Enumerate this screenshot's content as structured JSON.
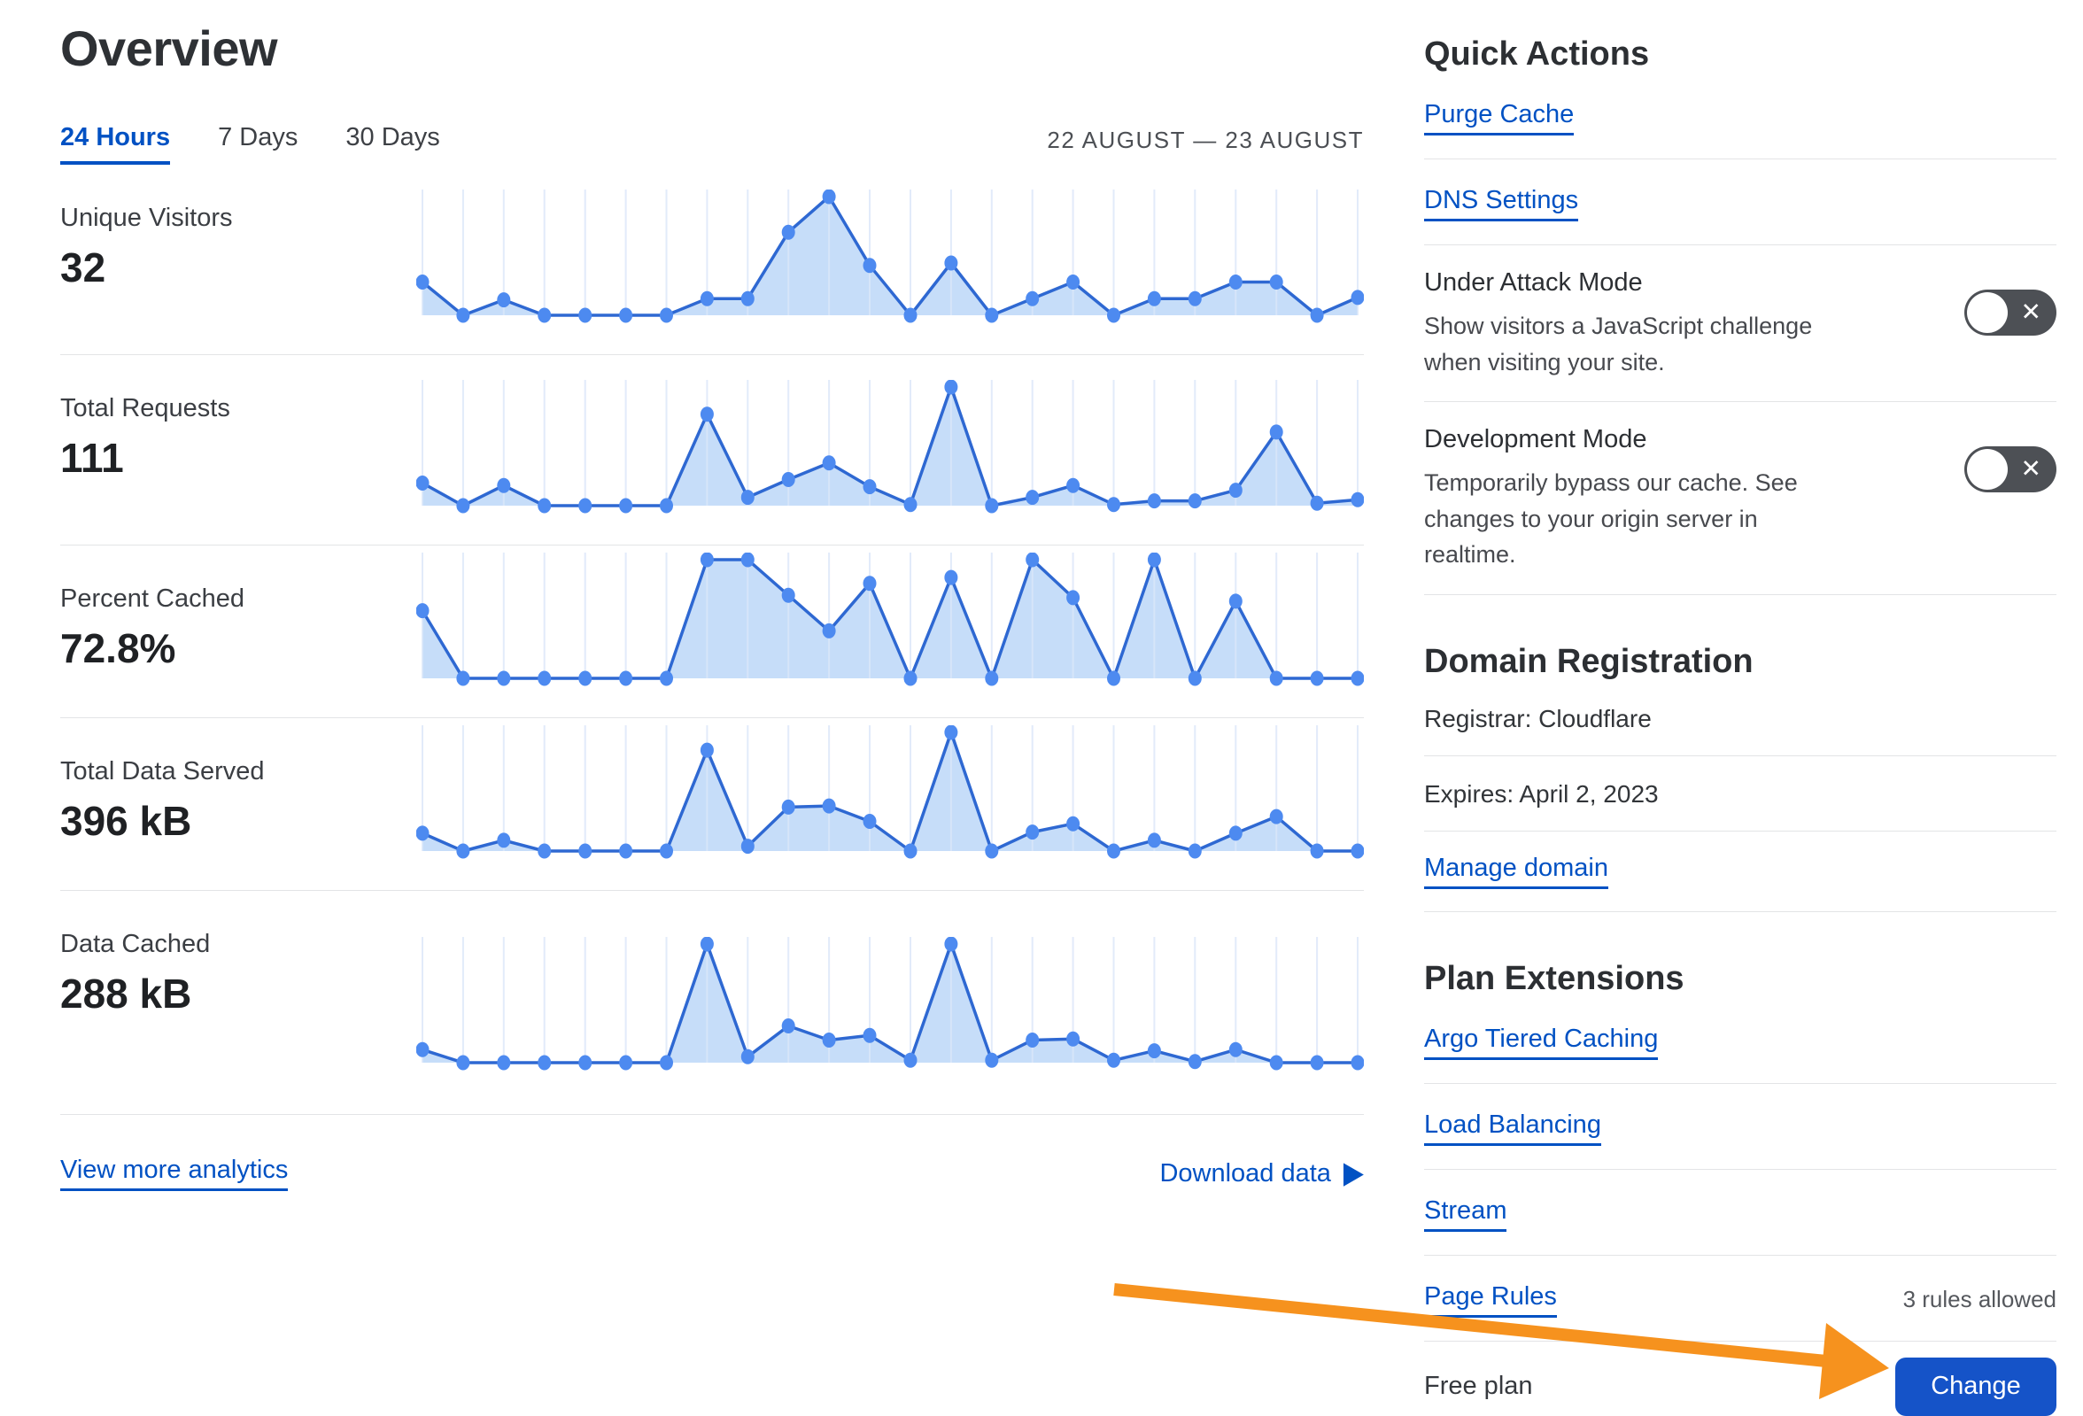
{
  "page": {
    "title": "Overview",
    "tabs": [
      {
        "label": "24 Hours",
        "active": true
      },
      {
        "label": "7 Days",
        "active": false
      },
      {
        "label": "30 Days",
        "active": false
      }
    ],
    "date_range": "22 AUGUST — 23 AUGUST"
  },
  "charts": {
    "rows": [
      {
        "label": "Unique Visitors",
        "value": "32"
      },
      {
        "label": "Total Requests",
        "value": "111"
      },
      {
        "label": "Percent Cached",
        "value": "72.8%"
      },
      {
        "label": "Total Data Served",
        "value": "396 kB"
      },
      {
        "label": "Data Cached",
        "value": "288 kB"
      }
    ],
    "footer": {
      "view_more": "View more analytics",
      "download": "Download data"
    }
  },
  "chart_data": [
    {
      "type": "area",
      "title": "Unique Visitors",
      "total_display": "32",
      "x": "24 hourly points, 22–23 August (unlabeled)",
      "ylim": [
        0,
        1
      ],
      "grid": "vertical lines at every point",
      "legend": "none",
      "values_norm": [
        0.28,
        0,
        0.13,
        0,
        0,
        0,
        0,
        0.14,
        0.14,
        0.7,
        1.0,
        0.42,
        0,
        0.44,
        0,
        0.14,
        0.28,
        0,
        0.14,
        0.14,
        0.28,
        0.28,
        0,
        0.15
      ]
    },
    {
      "type": "area",
      "title": "Total Requests",
      "total_display": "111",
      "x": "24 hourly points (unlabeled)",
      "ylim": [
        0,
        1
      ],
      "grid": "vertical lines at every point",
      "legend": "none",
      "values_norm": [
        0.19,
        0,
        0.17,
        0,
        0,
        0,
        0,
        0.77,
        0.07,
        0.22,
        0.36,
        0.16,
        0.01,
        1.0,
        0,
        0.07,
        0.17,
        0.01,
        0.04,
        0.04,
        0.13,
        0.62,
        0.02,
        0.05
      ]
    },
    {
      "type": "area",
      "title": "Percent Cached",
      "total_display": "72.8%",
      "x": "24 hourly points (unlabeled)",
      "ylim": [
        0,
        1
      ],
      "grid": "vertical lines at every point",
      "legend": "none",
      "values_norm": [
        0.57,
        0,
        0,
        0,
        0,
        0,
        0,
        1.0,
        1.0,
        0.7,
        0.4,
        0.8,
        0,
        0.85,
        0,
        1.0,
        0.68,
        0,
        1.0,
        0,
        0.65,
        0,
        0,
        0
      ]
    },
    {
      "type": "area",
      "title": "Total Data Served",
      "total_display": "396 kB",
      "x": "24 hourly points (unlabeled)",
      "ylim": [
        0,
        1
      ],
      "grid": "vertical lines at every point",
      "legend": "none",
      "values_norm": [
        0.15,
        0,
        0.09,
        0,
        0,
        0,
        0,
        0.85,
        0.04,
        0.37,
        0.38,
        0.25,
        0,
        1.0,
        0,
        0.16,
        0.23,
        0,
        0.09,
        0,
        0.15,
        0.29,
        0,
        0
      ]
    },
    {
      "type": "area",
      "title": "Data Cached",
      "total_display": "288 kB",
      "x": "24 hourly points (unlabeled)",
      "ylim": [
        0,
        1
      ],
      "grid": "vertical lines at every point",
      "legend": "none",
      "values_norm": [
        0.11,
        0,
        0,
        0,
        0,
        0,
        0,
        1.0,
        0.05,
        0.31,
        0.19,
        0.23,
        0.02,
        1.0,
        0.02,
        0.19,
        0.2,
        0.02,
        0.1,
        0.01,
        0.11,
        0,
        0,
        0
      ]
    }
  ],
  "sidebar": {
    "quick_actions": {
      "title": "Quick Actions",
      "links": [
        "Purge Cache",
        "DNS Settings"
      ],
      "toggles": [
        {
          "title": "Under Attack Mode",
          "description": "Show visitors a JavaScript challenge when visiting your site.",
          "state": "off"
        },
        {
          "title": "Development Mode",
          "description": "Temporarily bypass our cache. See changes to your origin server in realtime.",
          "state": "off"
        }
      ]
    },
    "domain_registration": {
      "title": "Domain Registration",
      "registrar": "Registrar: Cloudflare",
      "expires": "Expires: April 2, 2023",
      "manage": "Manage domain"
    },
    "plan_extensions": {
      "title": "Plan Extensions",
      "links": [
        {
          "label": "Argo Tiered Caching"
        },
        {
          "label": "Load Balancing"
        },
        {
          "label": "Stream"
        },
        {
          "label": "Page Rules",
          "note": "3 rules allowed"
        }
      ]
    },
    "plan": {
      "label": "Free plan",
      "button": "Change"
    }
  },
  "icons": {
    "download_play_icon": "▶",
    "toggle_off_icon": "✕"
  },
  "colors": {
    "link": "#0051c3",
    "button": "#1553c8",
    "toggle": "#4d5055",
    "arrow": "#f6921e",
    "spark_line": "#2e68d2",
    "spark_dot": "#4d8af0",
    "spark_fill": "#c0d9f8",
    "spark_grid": "#dbe7fa",
    "divider": "#e3e4e6"
  }
}
